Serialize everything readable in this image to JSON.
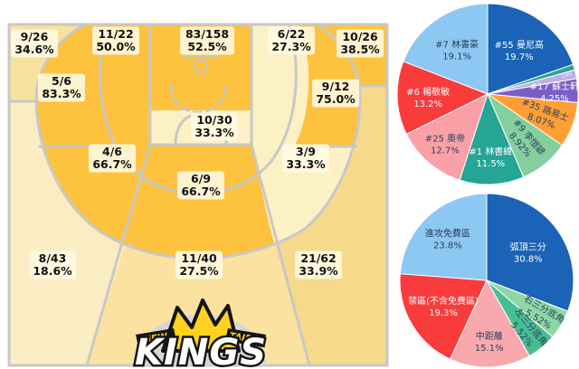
{
  "accent_colors": {
    "court_line_gray": "#c8c8c8",
    "label_text": "#111111",
    "pie_dark_text": "#2a3f5f",
    "pie_light_text": "#ffffff"
  },
  "palette": {
    "hot": "#FDC23E",
    "warm": "#FBE2A0",
    "mild": "#F7D98C",
    "cool": "#F7E29D",
    "pale": "#FCF0C5",
    "palest": "#FAEDC3"
  },
  "logo": {
    "new": "NEW",
    "taipei": "TAIPEI",
    "kings": "KINGS"
  },
  "chart_data": [
    {
      "type": "shot_chart",
      "name": "team-shot-zones",
      "zones": [
        {
          "zone": "left-corner-3",
          "made": 9,
          "att": 26,
          "made_att": "9/26",
          "pct": 34.6,
          "pct_label": "34.6%",
          "tone": "cool"
        },
        {
          "zone": "left-baseline-mid",
          "made": 11,
          "att": 22,
          "made_att": "11/22",
          "pct": 50.0,
          "pct_label": "50.0%",
          "tone": "hot"
        },
        {
          "zone": "paint",
          "made": 83,
          "att": 158,
          "made_att": "83/158",
          "pct": 52.5,
          "pct_label": "52.5%",
          "tone": "hot"
        },
        {
          "zone": "right-baseline-mid",
          "made": 6,
          "att": 22,
          "made_att": "6/22",
          "pct": 27.3,
          "pct_label": "27.3%",
          "tone": "pale"
        },
        {
          "zone": "right-corner-3",
          "made": 10,
          "att": 26,
          "made_att": "10/26",
          "pct": 38.5,
          "pct_label": "38.5%",
          "tone": "hot"
        },
        {
          "zone": "left-wing-mid",
          "made": 5,
          "att": 6,
          "made_att": "5/6",
          "pct": 83.3,
          "pct_label": "83.3%",
          "tone": "hot"
        },
        {
          "zone": "right-wing-mid",
          "made": 9,
          "att": 12,
          "made_att": "9/12",
          "pct": 75.0,
          "pct_label": "75.0%",
          "tone": "hot"
        },
        {
          "zone": "free-throw-area",
          "made": 10,
          "att": 30,
          "made_att": "10/30",
          "pct": 33.3,
          "pct_label": "33.3%",
          "tone": "pale"
        },
        {
          "zone": "left-low-mid",
          "made": 4,
          "att": 6,
          "made_att": "4/6",
          "pct": 66.7,
          "pct_label": "66.7%",
          "tone": "hot"
        },
        {
          "zone": "right-low-mid",
          "made": 3,
          "att": 9,
          "made_att": "3/9",
          "pct": 33.3,
          "pct_label": "33.3%",
          "tone": "pale"
        },
        {
          "zone": "center-low-mid",
          "made": 6,
          "att": 9,
          "made_att": "6/9",
          "pct": 66.7,
          "pct_label": "66.7%",
          "tone": "hot"
        },
        {
          "zone": "left-3",
          "made": 8,
          "att": 43,
          "made_att": "8/43",
          "pct": 18.6,
          "pct_label": "18.6%",
          "tone": "palest"
        },
        {
          "zone": "top-3",
          "made": 11,
          "att": 40,
          "made_att": "11/40",
          "pct": 27.5,
          "pct_label": "27.5%",
          "tone": "warm"
        },
        {
          "zone": "right-3",
          "made": 21,
          "att": 62,
          "made_att": "21/62",
          "pct": 33.9,
          "pct_label": "33.9%",
          "tone": "mild"
        }
      ]
    },
    {
      "type": "pie",
      "name": "player-shot-share",
      "legend": "none",
      "slices": [
        {
          "label": "#55 曼尼高",
          "pct_label": "19.7%",
          "value": 19.7,
          "color": "#1b63b6",
          "text": "light",
          "label_r": 0.6,
          "rot": 0
        },
        {
          "label": "",
          "pct_label": "",
          "value": 1.0,
          "color": "#2aa492",
          "text": "light",
          "label_r": 0,
          "rot": 0
        },
        {
          "label": "",
          "pct_label": "1.6%",
          "value": 1.56,
          "color": "#bfaee3",
          "text": "light",
          "label_r": 0.9,
          "rot": -13,
          "tiny": true
        },
        {
          "label": "#17 蘇士軒",
          "pct_label": "4.25%",
          "value": 4.25,
          "color": "#7a5ec8",
          "text": "light",
          "label_r": 0.74,
          "rot": 0
        },
        {
          "label": "#35 路易士",
          "pct_label": "8.07%",
          "value": 8.07,
          "color": "#ff9f33",
          "text": "dark",
          "label_r": 0.66,
          "rot": 20
        },
        {
          "label": "#9 李愷諺",
          "pct_label": "8.92%",
          "value": 8.92,
          "color": "#85cf9f",
          "text": "dark",
          "label_r": 0.66,
          "rot": 50
        },
        {
          "label": "#1 林書緯",
          "pct_label": "11.5%",
          "value": 11.5,
          "color": "#25a596",
          "text": "light",
          "label_r": 0.69,
          "rot": 0
        },
        {
          "label": "#25 奧帝",
          "pct_label": "12.7%",
          "value": 12.7,
          "color": "#f9a1a7",
          "text": "dark",
          "label_r": 0.72,
          "rot": 0
        },
        {
          "label": "#6 楊敬敏",
          "pct_label": "13.2%",
          "value": 13.2,
          "color": "#fa3b3b",
          "text": "light",
          "label_r": 0.66,
          "rot": 0
        },
        {
          "label": "#7 林書豪",
          "pct_label": "19.1%",
          "value": 19.1,
          "color": "#8cc8f2",
          "text": "dark",
          "label_r": 0.6,
          "rot": 0
        }
      ]
    },
    {
      "type": "pie",
      "name": "shot-area-share",
      "legend": "none",
      "slices": [
        {
          "label": "弧頂三分",
          "pct_label": "30.8%",
          "value": 30.8,
          "color": "#1b63b6",
          "text": "light",
          "label_r": 0.58,
          "rot": 0
        },
        {
          "label": "右三分底角",
          "pct_label": "5.52%",
          "value": 5.52,
          "color": "#8fd6a5",
          "text": "dark",
          "label_r": 0.74,
          "rot": 31
        },
        {
          "label": "左三分底角",
          "pct_label": "5.52%",
          "value": 5.52,
          "color": "#49bd92",
          "text": "dark",
          "label_r": 0.74,
          "rot": 51
        },
        {
          "label": "中距離",
          "pct_label": "15.1%",
          "value": 15.1,
          "color": "#f9a8ae",
          "text": "dark",
          "label_r": 0.7,
          "rot": 0
        },
        {
          "label": "禁區(不含免費區)",
          "pct_label": "19.3%",
          "value": 19.3,
          "color": "#fa3b3b",
          "text": "light",
          "label_r": 0.58,
          "rot": 0
        },
        {
          "label": "進攻免費區",
          "pct_label": "23.8%",
          "value": 23.8,
          "color": "#8cc8f2",
          "text": "dark",
          "label_r": 0.66,
          "rot": 0
        }
      ]
    }
  ]
}
